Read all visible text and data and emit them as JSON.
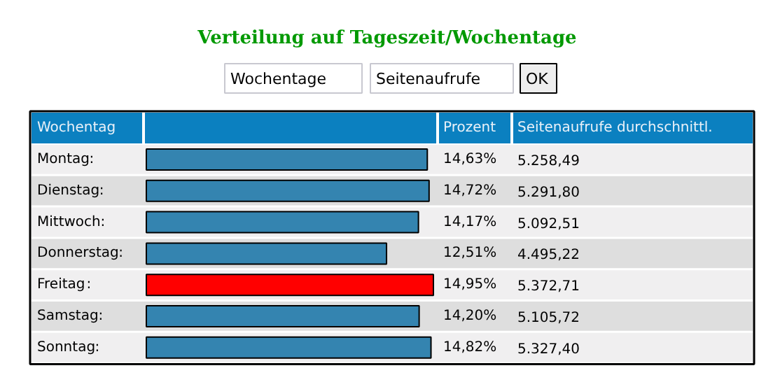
{
  "chart_data": {
    "type": "bar",
    "orientation": "horizontal",
    "title": "Verteilung auf Tageszeit/Wochentage",
    "ylabel": "Wochentag",
    "categories": [
      "Montag",
      "Dienstag",
      "Mittwoch",
      "Donnerstag",
      "Freitag",
      "Samstag",
      "Sonntag"
    ],
    "values": [
      5258.49,
      5291.8,
      5092.51,
      4495.22,
      5372.71,
      5105.72,
      5327.4
    ],
    "colors": [
      "#3484b0",
      "#3484b0",
      "#3484b0",
      "#3484b0",
      "#ff0000",
      "#3484b0",
      "#3484b0"
    ],
    "value_labels": [
      "5.258,49",
      "5.291,80",
      "5.092,51",
      "4.495,22",
      "5.372,71",
      "5.105,72",
      "5.327,40"
    ],
    "annotations": [
      "Prozent",
      "Seitenaufrufe durchschnittl.",
      ":",
      "14,63%",
      "14,72%",
      "14,17%",
      "12,51%",
      "14,95%",
      "14,20%",
      "14,82%",
      "Wochentage",
      "Seitenaufrufe",
      "OK"
    ],
    "grid": false
  }
}
